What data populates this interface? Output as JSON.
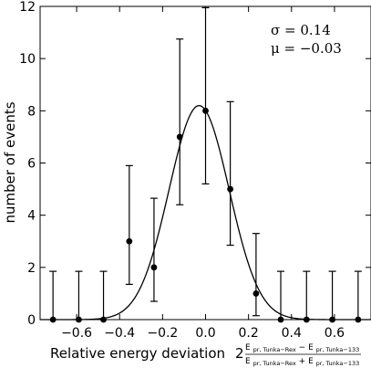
{
  "chart_data": {
    "type": "scatter",
    "xlabel": "Relative energy deviation",
    "xlabel_formula": {
      "factor": "2",
      "numerator": "E_pr,Tunka−Rex − E_pr,Tunka−133",
      "denominator": "E_pr,Tunka−Rex + E_pr,Tunka−133",
      "num_a": "E",
      "num_a_sub": "pr, Tunka−Rex",
      "num_op": "−",
      "num_b": "E",
      "num_b_sub": "pr, Tunka−133",
      "den_a": "E",
      "den_a_sub": "pr, Tunka−Rex",
      "den_op": "+",
      "den_b": "E",
      "den_b_sub": "pr, Tunka−133"
    },
    "ylabel": "number of events",
    "xlim": [
      -0.77,
      0.77
    ],
    "ylim": [
      0,
      12
    ],
    "xticks": [
      "−0.6",
      "−0.4",
      "−0.2",
      "0.0",
      "0.2",
      "0.4",
      "0.6"
    ],
    "xtick_values": [
      -0.6,
      -0.4,
      -0.2,
      0.0,
      0.2,
      0.4,
      0.6
    ],
    "yticks": [
      "0",
      "2",
      "4",
      "6",
      "8",
      "10",
      "12"
    ],
    "ytick_values": [
      0,
      2,
      4,
      6,
      8,
      10,
      12
    ],
    "series": [
      {
        "x": [
          -0.71,
          -0.59,
          -0.475,
          -0.355,
          -0.24,
          -0.12,
          0.0,
          0.115,
          0.235,
          0.35,
          0.47,
          0.59,
          0.71
        ],
        "y": [
          0,
          0,
          0,
          3,
          2,
          7,
          8,
          5,
          1,
          0,
          0,
          0,
          0
        ],
        "err_low": [
          0,
          0,
          0,
          1.65,
          1.3,
          2.6,
          2.8,
          2.15,
          0.85,
          0,
          0,
          0,
          0
        ],
        "err_high": [
          1.85,
          1.85,
          1.85,
          2.9,
          2.65,
          3.75,
          3.95,
          3.35,
          2.3,
          1.85,
          1.85,
          1.85,
          1.85
        ]
      }
    ],
    "fit": {
      "type": "gaussian",
      "sigma": 0.14,
      "mu": -0.03,
      "amplitude": 8.2
    },
    "annotations": [
      "σ = 0.14",
      "μ = −0.03"
    ],
    "grid": false
  }
}
